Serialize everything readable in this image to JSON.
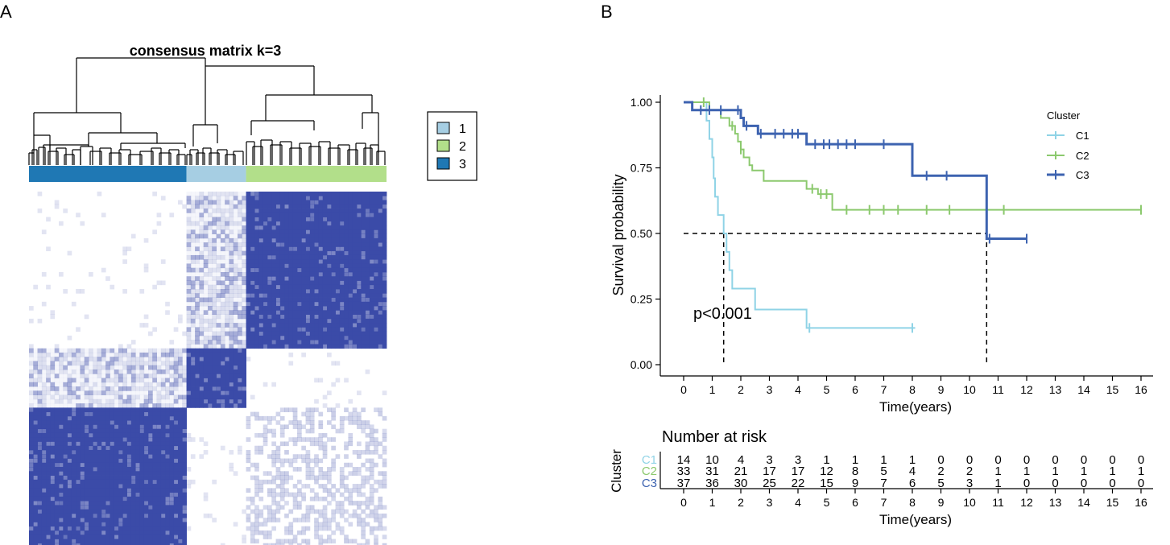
{
  "panels": {
    "a_label": "A",
    "b_label": "B"
  },
  "colors": {
    "cluster1": "#a6cee3",
    "cluster2": "#b2df8a",
    "cluster3": "#1f78b4",
    "matrix": "#3b4ba8",
    "km_c1": "#8fd3e6",
    "km_c2": "#8cc96e",
    "km_c3": "#3d63b0"
  },
  "chart_data": [
    {
      "type": "heatmap",
      "title": "consensus matrix k=3",
      "legend": {
        "entries": [
          "1",
          "2",
          "3"
        ],
        "position": "top-right"
      },
      "cluster_order": [
        "3",
        "1",
        "2"
      ],
      "cluster_sizes": [
        37,
        14,
        33
      ],
      "block_consensus": [
        [
          0.0,
          0.3,
          1.0
        ],
        [
          0.3,
          1.0,
          0.0
        ],
        [
          1.0,
          0.0,
          0.15
        ]
      ]
    },
    {
      "type": "line",
      "subtype": "kaplan-meier",
      "xlabel": "Time(years)",
      "ylabel": "Survival probability",
      "xlim": [
        0,
        16
      ],
      "ylim": [
        0,
        1
      ],
      "x_ticks": [
        "0",
        "1",
        "2",
        "3",
        "4",
        "5",
        "6",
        "7",
        "8",
        "9",
        "10",
        "11",
        "12",
        "13",
        "14",
        "15",
        "16"
      ],
      "y_ticks": [
        "0.00",
        "0.25",
        "0.50",
        "0.75",
        "1.00"
      ],
      "annotation": "p<0.001",
      "median_line_y": 0.5,
      "median_times": [
        1.4,
        10.6
      ],
      "legend_title": "Cluster",
      "series": [
        {
          "name": "C1",
          "steps": [
            [
              0,
              1.0
            ],
            [
              0.8,
              0.93
            ],
            [
              0.9,
              0.86
            ],
            [
              1.0,
              0.79
            ],
            [
              1.05,
              0.71
            ],
            [
              1.1,
              0.64
            ],
            [
              1.2,
              0.57
            ],
            [
              1.4,
              0.5
            ],
            [
              1.5,
              0.43
            ],
            [
              1.6,
              0.36
            ],
            [
              1.7,
              0.29
            ],
            [
              2.5,
              0.21
            ],
            [
              4.3,
              0.14
            ],
            [
              8.1,
              0.14
            ]
          ],
          "censor": [
            4.4,
            8.0
          ]
        },
        {
          "name": "C2",
          "steps": [
            [
              0,
              1.0
            ],
            [
              0.9,
              0.97
            ],
            [
              1.3,
              0.94
            ],
            [
              1.6,
              0.91
            ],
            [
              1.8,
              0.88
            ],
            [
              1.9,
              0.85
            ],
            [
              2.0,
              0.82
            ],
            [
              2.1,
              0.79
            ],
            [
              2.3,
              0.76
            ],
            [
              2.4,
              0.74
            ],
            [
              2.8,
              0.7
            ],
            [
              4.3,
              0.67
            ],
            [
              4.7,
              0.65
            ],
            [
              5.2,
              0.59
            ],
            [
              16,
              0.59
            ]
          ],
          "censor": [
            0.7,
            1.7,
            2.0,
            4.5,
            4.8,
            5.0,
            5.7,
            6.5,
            7.0,
            7.5,
            8.5,
            9.3,
            11.2,
            16.0
          ]
        },
        {
          "name": "C3",
          "steps": [
            [
              0,
              1.0
            ],
            [
              0.3,
              0.97
            ],
            [
              2.0,
              0.94
            ],
            [
              2.1,
              0.91
            ],
            [
              2.6,
              0.88
            ],
            [
              4.3,
              0.84
            ],
            [
              8.0,
              0.72
            ],
            [
              10.6,
              0.48
            ],
            [
              12,
              0.48
            ]
          ],
          "censor": [
            0.6,
            0.9,
            1.3,
            1.9,
            2.2,
            2.7,
            3.2,
            3.5,
            3.8,
            4.0,
            4.6,
            4.9,
            5.1,
            5.4,
            5.7,
            6.0,
            7.0,
            8.5,
            9.2,
            10.7,
            12.0
          ]
        }
      ]
    },
    {
      "type": "table",
      "title": "Number at risk",
      "xlabel": "Time(years)",
      "ylabel": "Cluster",
      "times": [
        "0",
        "1",
        "2",
        "3",
        "4",
        "5",
        "6",
        "7",
        "8",
        "9",
        "10",
        "11",
        "12",
        "13",
        "14",
        "15",
        "16"
      ],
      "rows": [
        {
          "name": "C1",
          "values": [
            "14",
            "10",
            "4",
            "3",
            "3",
            "1",
            "1",
            "1",
            "1",
            "0",
            "0",
            "0",
            "0",
            "0",
            "0",
            "0",
            "0"
          ]
        },
        {
          "name": "C2",
          "values": [
            "33",
            "31",
            "21",
            "17",
            "17",
            "12",
            "8",
            "5",
            "4",
            "2",
            "2",
            "1",
            "1",
            "1",
            "1",
            "1",
            "1"
          ]
        },
        {
          "name": "C3",
          "values": [
            "37",
            "36",
            "30",
            "25",
            "22",
            "15",
            "9",
            "7",
            "6",
            "5",
            "3",
            "1",
            "0",
            "0",
            "0",
            "0",
            "0"
          ]
        }
      ]
    }
  ]
}
